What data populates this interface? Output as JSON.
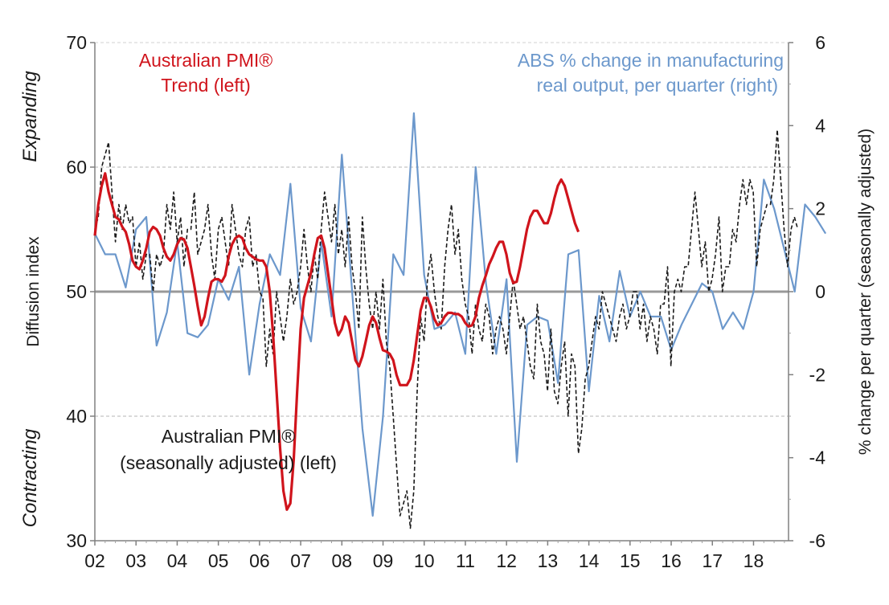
{
  "chart_data": {
    "type": "line",
    "title": "",
    "xlabel": "",
    "ylabel": "Diffusion index",
    "ylabel_right": "% change per quarter (seasonally adjusted)",
    "ylim": [
      30,
      70
    ],
    "ylim_right": [
      -6,
      6
    ],
    "x_tick_labels": [
      "02",
      "03",
      "04",
      "05",
      "06",
      "07",
      "08",
      "09",
      "10",
      "11",
      "12",
      "13",
      "14",
      "15",
      "16",
      "17",
      "18"
    ],
    "y_ticks_left": [
      "30",
      "40",
      "50",
      "60",
      "70"
    ],
    "y_ticks_right": [
      "-6",
      "-4",
      "-2",
      "0",
      "2",
      "4",
      "6"
    ],
    "side_labels": {
      "top": "Expanding",
      "bottom": "Contracting"
    },
    "annotations": {
      "trend_line1": "Australian PMI®",
      "trend_line2": "Trend (left)",
      "abs_line1": "ABS % change in manufacturing",
      "abs_line2": "real output, per quarter (right)",
      "sa_line1": "Australian PMI®",
      "sa_line2": "(seasonally adjusted) (left)"
    },
    "colors": {
      "trend": "#d0141c",
      "abs": "#6c98cc",
      "sa": "#1a1a1a",
      "axis": "#808080",
      "grid": "#b4b4b4",
      "baseline": "#999999"
    },
    "series": [
      {
        "name": "Australian PMI® (seasonally adjusted) (left)",
        "axis": "left",
        "start": 2002.0,
        "step": 0.0833,
        "values": [
          55,
          56,
          60,
          61,
          62,
          58,
          54,
          57,
          55,
          57,
          55.5,
          56,
          52,
          54,
          51,
          53,
          53,
          50,
          53,
          52,
          53,
          57,
          55,
          58,
          54,
          56,
          52,
          55,
          55,
          58,
          53,
          54,
          55,
          57,
          53,
          51,
          55,
          56,
          54,
          52,
          57,
          55,
          53,
          52,
          55,
          56,
          52,
          53,
          50,
          49.5,
          44,
          47,
          45,
          50,
          48,
          46,
          48,
          51,
          49,
          50,
          52,
          55,
          52,
          50,
          53,
          51,
          55,
          58,
          56,
          54,
          57,
          53,
          55,
          52,
          56,
          52,
          50,
          47,
          56,
          52,
          49,
          47,
          50,
          47,
          51,
          46,
          44,
          40,
          36,
          32,
          33,
          34,
          31,
          34,
          42,
          48,
          46,
          51,
          53,
          50,
          48,
          47,
          52,
          55,
          57,
          53,
          55,
          51,
          49,
          48,
          45,
          49,
          47,
          46,
          49,
          48,
          45,
          47,
          48,
          47,
          45,
          48,
          51,
          49,
          47,
          48,
          46,
          44,
          43,
          49,
          46,
          45,
          42,
          47,
          42,
          41,
          44,
          46,
          40,
          45,
          44,
          37,
          39,
          43,
          44,
          46,
          48,
          47,
          50,
          49,
          48,
          47,
          46,
          48,
          49,
          47,
          48,
          50,
          50,
          47,
          49,
          46,
          48,
          47,
          45,
          49,
          49,
          52,
          44,
          50,
          51,
          50,
          52,
          52,
          55,
          58,
          55,
          52,
          54,
          50,
          51,
          53,
          56,
          50,
          52,
          52,
          55,
          54,
          57,
          59,
          57,
          59,
          58,
          52,
          55,
          56,
          57,
          57,
          59,
          63,
          59,
          55,
          52,
          55,
          56,
          55
        ]
      },
      {
        "name": "Australian PMI® Trend (left)",
        "axis": "left",
        "start": 2002.0,
        "step": 0.0833,
        "values": [
          54.5,
          57,
          58.5,
          59.5,
          58,
          57,
          56,
          55.8,
          55.2,
          54.8,
          53.8,
          52.5,
          52,
          51.8,
          52.5,
          53.5,
          54.8,
          55.2,
          55,
          54.5,
          53.5,
          52.8,
          52.5,
          53,
          53.8,
          54.3,
          54.2,
          53.5,
          52,
          50.5,
          48.8,
          47.3,
          48,
          49.5,
          50.8,
          51,
          51,
          50.8,
          51.3,
          52.8,
          53.8,
          54.3,
          54.5,
          54.3,
          53.5,
          53,
          52.8,
          52.6,
          52.5,
          52.5,
          52,
          50,
          46.5,
          42,
          37.5,
          34,
          32.5,
          33,
          36.5,
          42,
          47,
          49.5,
          50.5,
          51.5,
          53,
          54.3,
          54.5,
          53.5,
          51.5,
          49.5,
          47.5,
          46.5,
          47,
          48,
          47.5,
          46,
          44.5,
          44,
          44.8,
          46,
          47.3,
          48,
          47.5,
          46.3,
          45.3,
          45.2,
          45,
          44.5,
          43.3,
          42.5,
          42.5,
          42.5,
          43,
          44.5,
          46.5,
          48.5,
          49.5,
          49.5,
          48.8,
          47.8,
          47.3,
          47.5,
          48,
          48.3,
          48.3,
          48.2,
          48.2,
          48,
          47.5,
          47.2,
          47.3,
          48,
          49.5,
          50.5,
          51.3,
          52.2,
          52.8,
          53.5,
          54,
          54,
          53,
          51.5,
          50.7,
          50.8,
          52,
          53.5,
          55,
          56,
          56.5,
          56.5,
          56,
          55.5,
          55.5,
          56.3,
          57.5,
          58.5,
          59,
          58.5,
          57.5,
          56.5,
          55.5,
          54.8
        ]
      },
      {
        "name": "ABS % change in manufacturing real output, per quarter (right)",
        "axis": "right",
        "start": 2002.0,
        "step": 0.25,
        "values": [
          1.4,
          0.9,
          0.9,
          0.1,
          1.5,
          1.8,
          -1.3,
          -0.5,
          1.2,
          -1,
          -1.1,
          -0.8,
          0.3,
          -0.2,
          0.6,
          -2.0,
          -0.3,
          0.9,
          0.4,
          2.6,
          -0.4,
          -1.2,
          1.2,
          -0.6,
          3.3,
          0.0,
          -3.3,
          -5.4,
          -3.0,
          0.9,
          0.4,
          4.3,
          0.4,
          -0.9,
          -0.8,
          -0.5,
          -1.5,
          3.0,
          0.2,
          -1.5,
          0.3,
          -4.1,
          -0.8,
          -0.6,
          -0.7,
          -2.2,
          0.9,
          1.0,
          -2.4,
          -0.1,
          -1.2,
          0.5,
          -0.6,
          0.0,
          -0.6,
          -0.6,
          -1.4,
          -0.8,
          -0.3,
          0.2,
          0.0,
          -0.9,
          -0.5,
          -0.9,
          0.0,
          2.7,
          2.0,
          1.0,
          0.0,
          2.1,
          1.8,
          1.4
        ]
      }
    ]
  }
}
